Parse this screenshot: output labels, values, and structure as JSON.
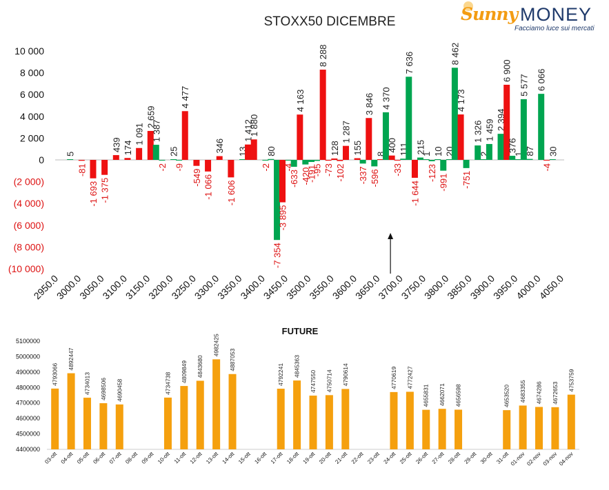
{
  "logo": {
    "brand_left": "Sunny",
    "brand_right": "MONEY",
    "tagline": "Facciamo luce sui mercati"
  },
  "colors": {
    "call": "#00a550",
    "put": "#ee1111",
    "future": "#f5a00e",
    "negative_label": "#dd1111"
  },
  "chart_data": [
    {
      "type": "bar",
      "title": "STOXX50 DICEMBRE",
      "ylim": [
        -10000,
        10000
      ],
      "yticks": [
        {
          "value": 10000,
          "label": "10 000"
        },
        {
          "value": 8000,
          "label": "8 000"
        },
        {
          "value": 6000,
          "label": "6 000"
        },
        {
          "value": 4000,
          "label": "4 000"
        },
        {
          "value": 2000,
          "label": "2 000"
        },
        {
          "value": 0,
          "label": "0"
        },
        {
          "value": -2000,
          "label": "(2 000)"
        },
        {
          "value": -4000,
          "label": "(4 000)"
        },
        {
          "value": -6000,
          "label": "(6 000)"
        },
        {
          "value": -8000,
          "label": "(8 000)"
        },
        {
          "value": -10000,
          "label": "(10 000)"
        }
      ],
      "xticks": [
        "2950.0",
        "3000.0",
        "3050.0",
        "3100.0",
        "3150.0",
        "3200.0",
        "3250.0",
        "3300.0",
        "3350.0",
        "3400.0",
        "3450.0",
        "3500.0",
        "3550.0",
        "3600.0",
        "3650.0",
        "3700.0",
        "3750.0",
        "3800.0",
        "3850.0",
        "3900.0",
        "3950.0",
        "4000.0",
        "4050.0"
      ],
      "strike_min": 2950,
      "strike_max": 4050,
      "grid": false,
      "marker_strike": 3672,
      "bars": [
        {
          "strike": 2975,
          "series": "call",
          "value": 5,
          "label": "5"
        },
        {
          "strike": 3000,
          "series": "put",
          "value": -81,
          "label": "-81"
        },
        {
          "strike": 3025,
          "series": "put",
          "value": -1693,
          "label": "-1 693"
        },
        {
          "strike": 3050,
          "series": "put",
          "value": -1375,
          "label": "-1 375"
        },
        {
          "strike": 3075,
          "series": "put",
          "value": 439,
          "label": "439"
        },
        {
          "strike": 3100,
          "series": "put",
          "value": 174,
          "label": "174"
        },
        {
          "strike": 3125,
          "series": "put",
          "value": 1091,
          "label": "1 091"
        },
        {
          "strike": 3150,
          "series": "put",
          "value": 2659,
          "label": "2 659"
        },
        {
          "strike": 3162,
          "series": "call",
          "value": 1387,
          "label": "1 387"
        },
        {
          "strike": 3175,
          "series": "call",
          "value": -2,
          "label": "-2"
        },
        {
          "strike": 3200,
          "series": "call",
          "value": 25,
          "label": "25"
        },
        {
          "strike": 3212,
          "series": "call",
          "value": -9,
          "label": "-9"
        },
        {
          "strike": 3225,
          "series": "put",
          "value": 4477,
          "label": "4 477"
        },
        {
          "strike": 3250,
          "series": "put",
          "value": -549,
          "label": "-549"
        },
        {
          "strike": 3275,
          "series": "put",
          "value": -1066,
          "label": "-1 066"
        },
        {
          "strike": 3300,
          "series": "put",
          "value": 346,
          "label": "346"
        },
        {
          "strike": 3325,
          "series": "put",
          "value": -1606,
          "label": "-1 606"
        },
        {
          "strike": 3350,
          "series": "call",
          "value": 13,
          "label": "13"
        },
        {
          "strike": 3362,
          "series": "put",
          "value": 1412,
          "label": "1 412"
        },
        {
          "strike": 3375,
          "series": "put",
          "value": 1880,
          "label": "1 880"
        },
        {
          "strike": 3400,
          "series": "call",
          "value": -2,
          "label": "-2"
        },
        {
          "strike": 3412,
          "series": "call",
          "value": 80,
          "label": "80"
        },
        {
          "strike": 3425,
          "series": "call",
          "value": -7354,
          "label": "-7 354"
        },
        {
          "strike": 3437,
          "series": "put",
          "value": -3895,
          "label": "-3 895"
        },
        {
          "strike": 3450,
          "series": "call",
          "value": -4,
          "label": "-4"
        },
        {
          "strike": 3462,
          "series": "call",
          "value": -633,
          "label": "-633"
        },
        {
          "strike": 3475,
          "series": "put",
          "value": 4163,
          "label": "4 163"
        },
        {
          "strike": 3487,
          "series": "call",
          "value": -420,
          "label": "-420"
        },
        {
          "strike": 3500,
          "series": "call",
          "value": -191,
          "label": "-191"
        },
        {
          "strike": 3512,
          "series": "call",
          "value": -95,
          "label": "-95"
        },
        {
          "strike": 3525,
          "series": "put",
          "value": 8288,
          "label": "8 288"
        },
        {
          "strike": 3537,
          "series": "put",
          "value": -73,
          "label": "-73"
        },
        {
          "strike": 3550,
          "series": "put",
          "value": 128,
          "label": "128"
        },
        {
          "strike": 3562,
          "series": "put",
          "value": -102,
          "label": "-102"
        },
        {
          "strike": 3575,
          "series": "put",
          "value": 1287,
          "label": "1 287"
        },
        {
          "strike": 3600,
          "series": "put",
          "value": 155,
          "label": "155"
        },
        {
          "strike": 3612,
          "series": "call",
          "value": -337,
          "label": "-337"
        },
        {
          "strike": 3625,
          "series": "put",
          "value": 3846,
          "label": "3 846"
        },
        {
          "strike": 3637,
          "series": "call",
          "value": -596,
          "label": "-596"
        },
        {
          "strike": 3650,
          "series": "put",
          "value": 8,
          "label": "8"
        },
        {
          "strike": 3662,
          "series": "call",
          "value": 4370,
          "label": "4 370"
        },
        {
          "strike": 3675,
          "series": "put",
          "value": 400,
          "label": "400"
        },
        {
          "strike": 3687,
          "series": "put",
          "value": -33,
          "label": "-33"
        },
        {
          "strike": 3700,
          "series": "call",
          "value": 111,
          "label": "111"
        },
        {
          "strike": 3712,
          "series": "call",
          "value": 7636,
          "label": "7 636"
        },
        {
          "strike": 3725,
          "series": "put",
          "value": -1644,
          "label": "-1 644"
        },
        {
          "strike": 3737,
          "series": "call",
          "value": 215,
          "label": "215"
        },
        {
          "strike": 3750,
          "series": "call",
          "value": 1,
          "label": "1"
        },
        {
          "strike": 3762,
          "series": "call",
          "value": -123,
          "label": "-123"
        },
        {
          "strike": 3775,
          "series": "call",
          "value": 10,
          "label": "10"
        },
        {
          "strike": 3787,
          "series": "call",
          "value": -991,
          "label": "-991"
        },
        {
          "strike": 3800,
          "series": "call",
          "value": 20,
          "label": "20"
        },
        {
          "strike": 3812,
          "series": "call",
          "value": 8462,
          "label": "8 462"
        },
        {
          "strike": 3825,
          "series": "put",
          "value": 4173,
          "label": "4 173"
        },
        {
          "strike": 3837,
          "series": "call",
          "value": -751,
          "label": "-751"
        },
        {
          "strike": 3862,
          "series": "call",
          "value": 1326,
          "label": "1 326"
        },
        {
          "strike": 3875,
          "series": "call",
          "value": 2,
          "label": "2"
        },
        {
          "strike": 3887,
          "series": "call",
          "value": 1459,
          "label": "1 459"
        },
        {
          "strike": 3912,
          "series": "call",
          "value": 2394,
          "label": "2 394"
        },
        {
          "strike": 3925,
          "series": "put",
          "value": 6900,
          "label": "6 900"
        },
        {
          "strike": 3937,
          "series": "call",
          "value": 376,
          "label": "376"
        },
        {
          "strike": 3950,
          "series": "call",
          "value": 1,
          "label": "1"
        },
        {
          "strike": 3962,
          "series": "call",
          "value": 5577,
          "label": "5 577"
        },
        {
          "strike": 3975,
          "series": "call",
          "value": 87,
          "label": "87"
        },
        {
          "strike": 4000,
          "series": "call",
          "value": 6066,
          "label": "6 066"
        },
        {
          "strike": 4012,
          "series": "put",
          "value": -4,
          "label": "-4"
        },
        {
          "strike": 4025,
          "series": "call",
          "value": 30,
          "label": "30"
        }
      ]
    },
    {
      "type": "bar",
      "title": "FUTURE",
      "ylim": [
        4400000,
        5100000
      ],
      "yticks": [
        4400000,
        4500000,
        4600000,
        4700000,
        4800000,
        4900000,
        5000000,
        5100000
      ],
      "categories": [
        "03-ott",
        "04-ott",
        "05-ott",
        "06-ott",
        "07-ott",
        "08-ott",
        "09-ott",
        "10-ott",
        "11-ott",
        "12-ott",
        "13-ott",
        "14-ott",
        "15-ott",
        "16-ott",
        "17-ott",
        "18-ott",
        "19-ott",
        "20-ott",
        "21-ott",
        "22-ott",
        "23-ott",
        "24-ott",
        "25-ott",
        "26-ott",
        "27-ott",
        "28-ott",
        "29-ott",
        "30-ott",
        "31-ott",
        "01-nov",
        "02-nov",
        "03-nov",
        "04-nov"
      ],
      "values": [
        4793066,
        4892447,
        4734013,
        4698506,
        4690458,
        null,
        null,
        4734738,
        4809849,
        4843680,
        4982425,
        4887053,
        null,
        null,
        4792241,
        4845363,
        4747550,
        4750714,
        4790614,
        null,
        null,
        4770619,
        4772427,
        4655831,
        4662071,
        4656598,
        null,
        null,
        4653520,
        4683355,
        4674286,
        4672653,
        4753759
      ],
      "grid": false
    }
  ]
}
